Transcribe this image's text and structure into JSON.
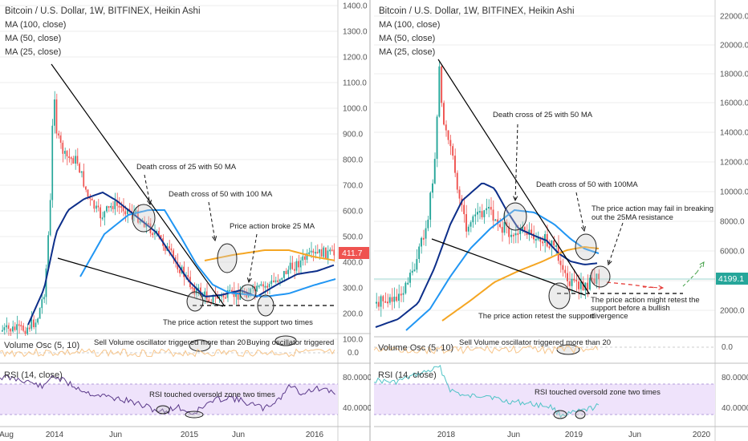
{
  "colors": {
    "bull": "#26a69a",
    "bear": "#ef5350",
    "ma100": "#f5a623",
    "ma50": "#2196f3",
    "ma25": "#0d2f8a",
    "rsi_line_left": "#5b3a8a",
    "rsi_line_right": "#4fc3c6",
    "rsi_band": "#efe3fb",
    "osc_line": "#f7c58a",
    "price_tag_left": "#ef5350",
    "price_tag_right": "#26a69a",
    "grid": "#eeeeee",
    "support": "#000000"
  },
  "panes": [
    {
      "id": "left",
      "title": "Bitcoin / U.S. Dollar, 1W, BITFINEX, Heikin Ashi",
      "legend": [
        "MA (100, close)",
        "MA (50, close)",
        "MA (25, close)"
      ],
      "price_axis": [
        "1400.0",
        "1300.0",
        "1200.0",
        "1100.0",
        "1000.0",
        "900.0",
        "800.0",
        "700.0",
        "600.0",
        "500.0",
        "400.0",
        "300.0",
        "200.0",
        "100.0"
      ],
      "current_price": "411.7",
      "time_axis": [
        "Aug",
        "2014",
        "Jun",
        "2015",
        "Jun",
        "2016"
      ],
      "volume_label": "Volume Osc (5, 10)",
      "volume_axis": [
        "0.0"
      ],
      "rsi_label": "RSI (14, close)",
      "rsi_axis": [
        "80.0000",
        "40.0000"
      ],
      "annotations": {
        "death_cross_25_50": "Death cross of 25 with 50 MA",
        "death_cross_50_100": "Death cross of 50 with 100 MA",
        "broke_25ma": "Price action broke 25 MA",
        "retest_support": "The price action retest the support two times",
        "sell_volume": "Sell Volume oscillator triggered more than 20",
        "buying_osc": "Buying oscillator triggered",
        "rsi_oversold": "RSI touched oversold zone two times"
      }
    },
    {
      "id": "right",
      "title": "Bitcoin / U.S. Dollar, 1W, BITFINEX, Heikin Ashi",
      "legend": [
        "MA (100, close)",
        "MA (50, close)",
        "MA (25, close)"
      ],
      "price_axis": [
        "22000.0",
        "20000.0",
        "18000.0",
        "16000.0",
        "14000.0",
        "12000.0",
        "10000.0",
        "8000.0",
        "6000.0",
        "4000.0",
        "2000.0"
      ],
      "current_price": "4199.1",
      "time_axis": [
        "2018",
        "Jun",
        "2019",
        "Jun",
        "2020"
      ],
      "volume_label": "Volume Osc (5, 10)",
      "volume_axis": [
        "0.0"
      ],
      "rsi_label": "RSI (14, close)",
      "rsi_axis": [
        "80.0000",
        "40.0000"
      ],
      "annotations": {
        "death_cross_25_50": "Death cross of 25 with 50 MA",
        "death_cross_50_100": "Death cross of 50 with 100MA",
        "fail_break_1": "The price action may fail in breaking",
        "fail_break_2": "out the 25MA resistance",
        "retest_support": "The price action retest the support",
        "might_retest_1": "The price action might retest the",
        "might_retest_2": "support before a bullish",
        "might_retest_3": "divergence",
        "sell_volume": "Sell Volume oscillator triggered more than 20",
        "rsi_oversold": "RSI touched oversold zone two times"
      }
    }
  ]
}
